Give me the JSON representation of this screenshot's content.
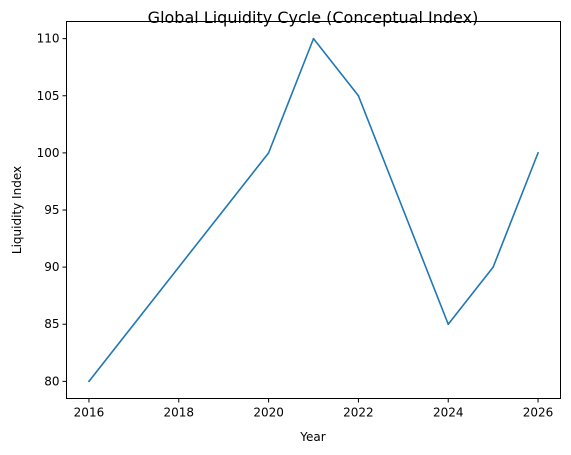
{
  "chart_data": {
    "type": "line",
    "title": "Global Liquidity Cycle (Conceptual Index)",
    "xlabel": "Year",
    "ylabel": "Liquidity Index",
    "x": [
      2016,
      2017,
      2018,
      2019,
      2020,
      2021,
      2022,
      2023,
      2024,
      2025,
      2026
    ],
    "series": [
      {
        "values": [
          80,
          85,
          90,
          95,
          100,
          110,
          105,
          95,
          85,
          90,
          100
        ],
        "color": "#1f77b4"
      }
    ],
    "xlim": [
      2015.5,
      2026.5
    ],
    "ylim": [
      78.5,
      111.5
    ],
    "x_ticks": [
      "2016",
      "2018",
      "2020",
      "2022",
      "2024",
      "2026"
    ],
    "y_ticks": [
      "80",
      "85",
      "90",
      "95",
      "100",
      "105",
      "110"
    ],
    "grid": false,
    "legend": "none"
  }
}
